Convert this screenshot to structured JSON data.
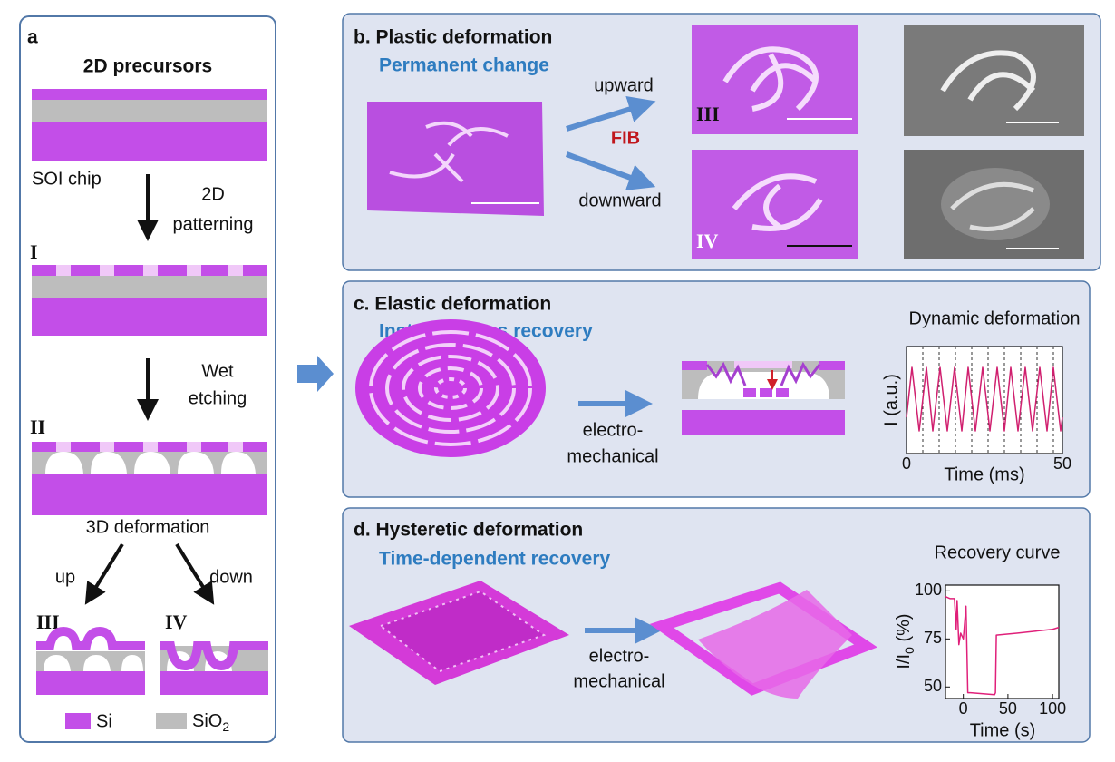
{
  "panel_a": {
    "label": "a",
    "title": "2D precursors",
    "chip": "SOI chip",
    "step1": [
      "2D",
      "patterning"
    ],
    "stage1": "I",
    "step2": [
      "Wet",
      "etching"
    ],
    "stage2": "II",
    "step3": "3D deformation",
    "up": "up",
    "down": "down",
    "stage3": "III",
    "stage4": "IV",
    "legend": [
      {
        "label": "Si",
        "color": "#c34ee8"
      },
      {
        "label": "SiO",
        "sub": "2",
        "color": "#bdbdbd"
      }
    ]
  },
  "panel_b": {
    "title": "b. Plastic deformation",
    "subtitle": "Permanent change",
    "upward": "upward",
    "method": "FIB",
    "downward": "downward",
    "upper": "III",
    "lower": "IV"
  },
  "panel_c": {
    "title": "c. Elastic deformation",
    "subtitle": "Instantaneous recovery",
    "process": [
      "electro-",
      "mechanical"
    ],
    "chart": {
      "type": "line",
      "title": "Dynamic deformation",
      "ylabel": "I (a.u.)",
      "xlabel": "Time (ms)",
      "xlim": [
        0,
        50
      ],
      "xticks": [
        0,
        50
      ]
    }
  },
  "panel_d": {
    "title": "d. Hysteretic deformation",
    "subtitle": "Time-dependent recovery",
    "process": [
      "electro-",
      "mechanical"
    ],
    "chart": {
      "type": "line",
      "title": "Recovery curve",
      "ylabel": {
        "main": "I/I",
        "sub": "0",
        "unit": " (%)"
      },
      "xlabel": "Time (s)",
      "xlim": [
        -20,
        107
      ],
      "ylim": [
        44,
        103
      ],
      "xticks": [
        0,
        50,
        100
      ],
      "yticks": [
        50,
        75,
        100
      ],
      "series": [
        {
          "color": "#e0207a",
          "x": [
            -20,
            -15,
            -10,
            -8,
            -7,
            -5,
            -3,
            0,
            3,
            5,
            8,
            35,
            36,
            37,
            60,
            80,
            100,
            107
          ],
          "values": [
            97,
            96,
            96,
            80,
            95,
            72,
            78,
            75,
            92,
            47,
            47,
            46,
            47,
            77,
            78,
            79,
            80,
            81
          ]
        }
      ]
    }
  }
}
